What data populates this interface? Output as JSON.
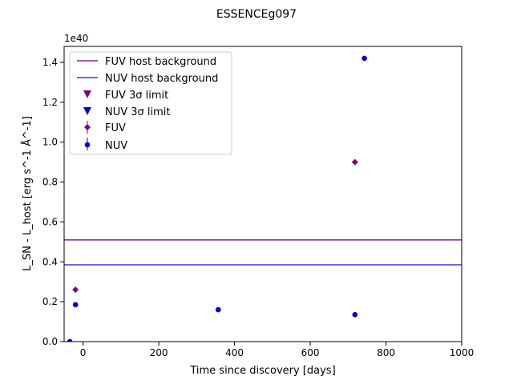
{
  "chart_data": {
    "type": "scatter",
    "title": "ESSENCEg097",
    "xlabel": "Time since discovery [days]",
    "ylabel": "L_SN - L_host [erg s^-1 Å^-1]",
    "y_offset_label": "1e40",
    "xlim": [
      -50,
      1000
    ],
    "ylim": [
      0,
      1.48
    ],
    "x_ticks": [
      0,
      200,
      400,
      600,
      800,
      1000
    ],
    "x_tick_labels": [
      "0",
      "200",
      "400",
      "600",
      "800",
      "1000"
    ],
    "y_ticks": [
      0.0,
      0.2,
      0.4,
      0.6,
      0.8,
      1.0,
      1.2,
      1.4
    ],
    "y_tick_labels": [
      "0.0",
      "0.2",
      "0.4",
      "0.6",
      "0.8",
      "1.0",
      "1.2",
      "1.4"
    ],
    "grid": false,
    "legend_position": "top-left",
    "hlines": [
      {
        "name": "FUV host background",
        "y": 0.51,
        "color": "#8b1a9e"
      },
      {
        "name": "NUV host background",
        "y": 0.385,
        "color": "#3333ee"
      }
    ],
    "limits": [
      {
        "name": "FUV 3σ limit",
        "color": "#800080",
        "points": []
      },
      {
        "name": "NUV 3σ limit",
        "color": "#0000cd",
        "points": []
      }
    ],
    "series": [
      {
        "name": "FUV",
        "marker": "diamond",
        "color": "#800080",
        "points": [
          {
            "x": -20,
            "y": 0.26
          },
          {
            "x": 718,
            "y": 0.9
          }
        ]
      },
      {
        "name": "NUV",
        "marker": "circle",
        "color": "#0000dd",
        "points": [
          {
            "x": -35,
            "y": 0.0
          },
          {
            "x": -20,
            "y": 0.185
          },
          {
            "x": 357,
            "y": 0.16
          },
          {
            "x": 718,
            "y": 0.135
          },
          {
            "x": 743,
            "y": 1.42
          }
        ]
      }
    ]
  }
}
